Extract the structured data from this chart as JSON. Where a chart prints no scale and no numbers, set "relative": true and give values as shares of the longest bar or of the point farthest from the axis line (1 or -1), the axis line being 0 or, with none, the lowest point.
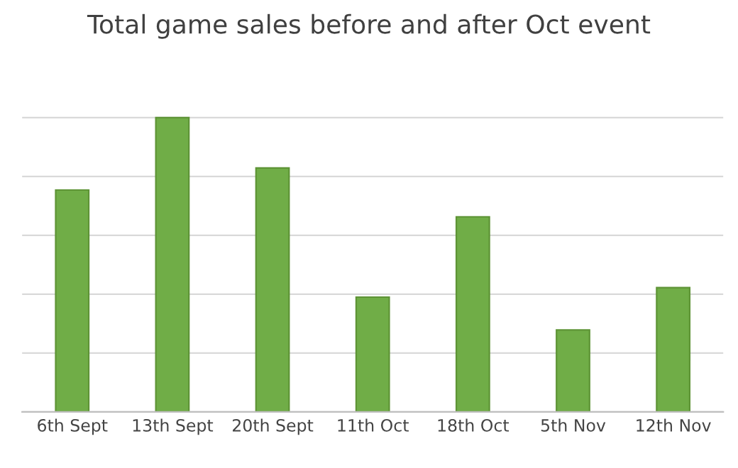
{
  "chart_data": {
    "type": "bar",
    "title": "Total game sales before and after Oct event",
    "categories": [
      "6th Sept",
      "13th Sept",
      "20th Sept",
      "11th Oct",
      "18th Oct",
      "5th Nov",
      "12th Nov"
    ],
    "values": [
      0.754,
      1,
      0.829,
      0.39,
      0.663,
      0.278,
      0.422
    ],
    "color": "#70ad47",
    "relative": true,
    "grid": "y",
    "legend": false
  }
}
